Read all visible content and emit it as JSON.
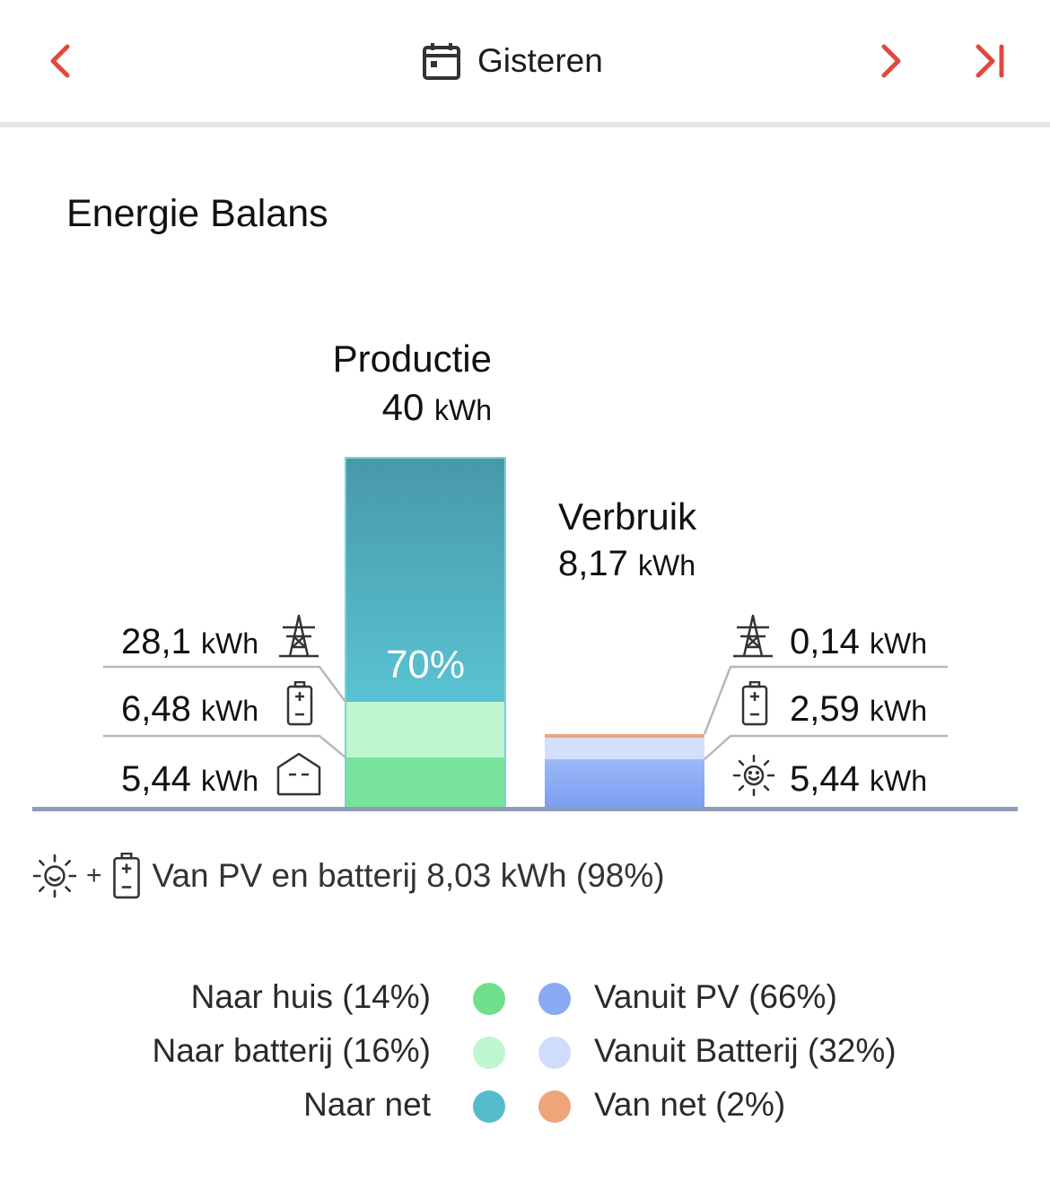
{
  "header": {
    "date_label": "Gisteren",
    "accent_color": "#e0483e"
  },
  "section_title": "Energie Balans",
  "production": {
    "title": "Productie",
    "total_value": "40",
    "unit": "kWh",
    "bar_percent_label": "70%",
    "items": [
      {
        "value": "28,1",
        "unit": "kWh",
        "icon": "power-tower-icon"
      },
      {
        "value": "6,48",
        "unit": "kWh",
        "icon": "battery-icon"
      },
      {
        "value": "5,44",
        "unit": "kWh",
        "icon": "house-icon"
      }
    ],
    "segments": {
      "to_grid_pct": 70,
      "to_battery_pct": 16,
      "to_house_pct": 14
    }
  },
  "consumption": {
    "title": "Verbruik",
    "total_value": "8,17",
    "unit": "kWh",
    "items": [
      {
        "value": "0,14",
        "unit": "kWh",
        "icon": "power-tower-icon"
      },
      {
        "value": "2,59",
        "unit": "kWh",
        "icon": "battery-icon"
      },
      {
        "value": "5,44",
        "unit": "kWh",
        "icon": "sun-icon"
      }
    ],
    "segments": {
      "from_pv_pct": 66,
      "from_battery_pct": 32,
      "from_grid_pct": 2
    }
  },
  "summary": {
    "plus": "+",
    "text": "Van PV en batterij 8,03 kWh (98%)"
  },
  "legend": {
    "left": [
      {
        "label": "Naar huis (14%)",
        "color": "#6ee08c"
      },
      {
        "label": "Naar batterij (16%)",
        "color": "#bff5cf"
      },
      {
        "label": "Naar net",
        "color": "#55bccd"
      }
    ],
    "right": [
      {
        "label": "Vanuit PV (66%)",
        "color": "#88aaf5"
      },
      {
        "label": "Vanuit Batterij (32%)",
        "color": "#cfdcfa"
      },
      {
        "label": "Van net (2%)",
        "color": "#eda57a"
      }
    ]
  }
}
